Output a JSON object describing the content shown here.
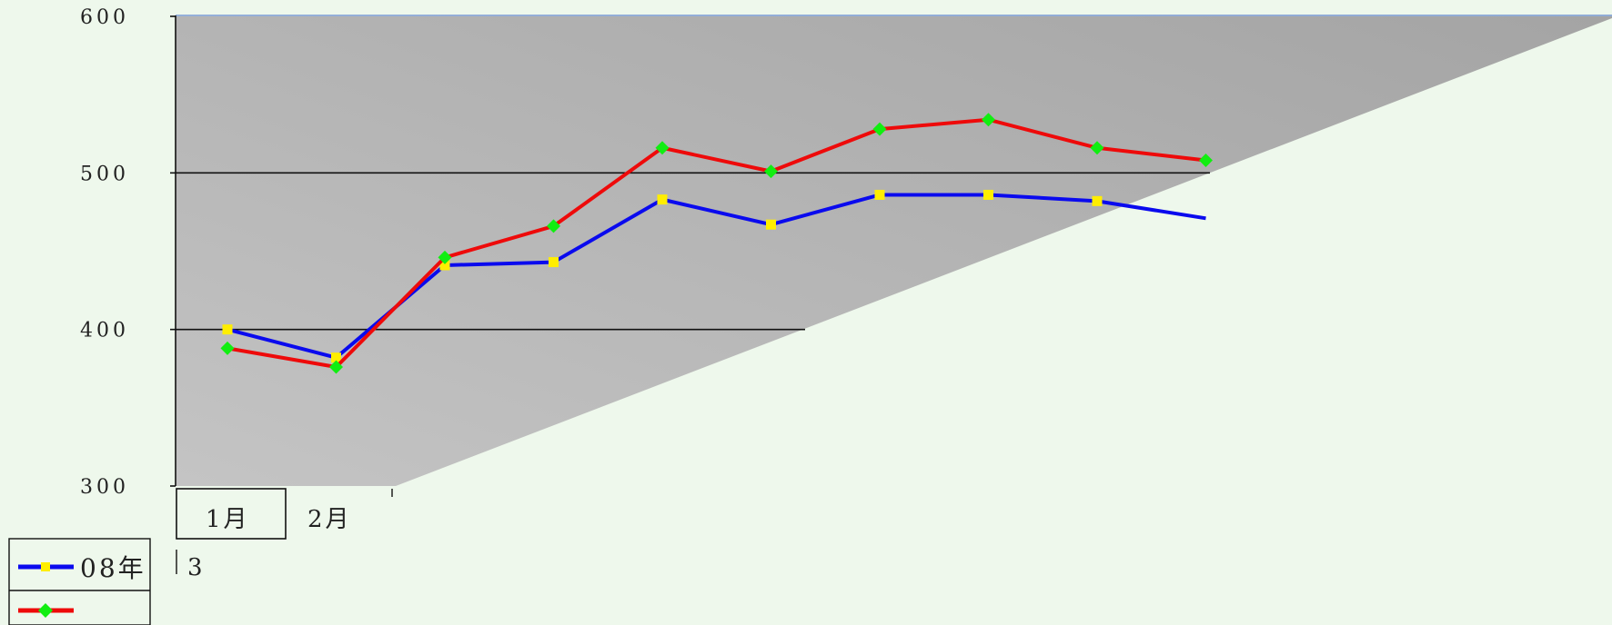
{
  "chart_data": {
    "type": "line",
    "title": "",
    "xlabel": "",
    "ylabel": "",
    "ylim": [
      300,
      600
    ],
    "yticks": [
      "300",
      "400",
      "500",
      "600"
    ],
    "categories": [
      "1月",
      "2月",
      "3"
    ],
    "x": [
      1,
      2,
      3,
      4,
      5,
      6,
      7,
      8,
      9,
      10
    ],
    "grid": true,
    "legend_position": "bottom-left",
    "series": [
      {
        "name": "08年",
        "color": "#0a0aee",
        "marker_color": "#ffee00",
        "marker": "square",
        "values": [
          400,
          382,
          441,
          443,
          483,
          467,
          486,
          486,
          482,
          471
        ]
      },
      {
        "name": "",
        "color": "#ee0a0a",
        "marker_color": "#11ee11",
        "marker": "diamond",
        "values": [
          388,
          376,
          446,
          466,
          516,
          501,
          528,
          534,
          516,
          508
        ]
      }
    ]
  }
}
